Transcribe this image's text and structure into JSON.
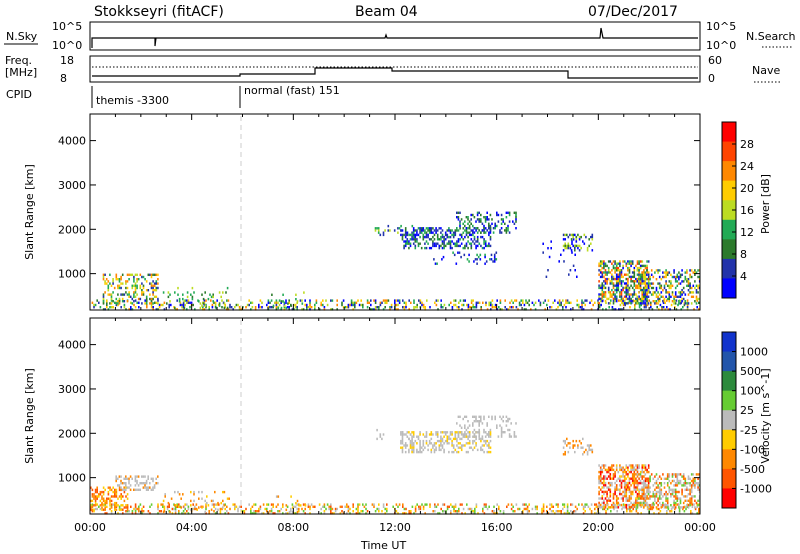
{
  "header": {
    "station": "Stokkseyri (fitACF)",
    "beam": "Beam 04",
    "date": "07/Dec/2017"
  },
  "strips": {
    "nsky_label": "N.Sky",
    "nsky_ticks": [
      "10^5",
      "10^0"
    ],
    "nsearch_label": "N.Search",
    "nsearch_ticks": [
      "10^5",
      "10^0"
    ],
    "freq_label_line1": "Freq.",
    "freq_label_line2": "[MHz]",
    "freq_ticks": [
      "18",
      "8"
    ],
    "nave_label": "Nave",
    "nave_ticks": [
      "60",
      "0"
    ],
    "cpid_label": "CPID",
    "cpid_segments": [
      {
        "label": "themis -3300",
        "start_hour": 0.0
      },
      {
        "label": "normal (fast) 151",
        "start_hour": 6.0
      }
    ]
  },
  "chart_data": [
    {
      "type": "heatmap",
      "title": "Power",
      "ylabel": "Slant Range [km]",
      "colorbar_label": "Power [dB]",
      "xlim_hours": [
        0,
        24
      ],
      "ylim": [
        180,
        4600
      ],
      "y_ticks": [
        "1000",
        "2000",
        "3000",
        "4000"
      ],
      "colorbar_ticks": [
        "28",
        "24",
        "20",
        "16",
        "12",
        "8",
        "4"
      ],
      "colorscale": [
        "#0000ff",
        "#2233aa",
        "#2c7a2c",
        "#22aa55",
        "#bcdc22",
        "#ffcc00",
        "#ff8800",
        "#ff4400",
        "#ff0000"
      ],
      "regions": [
        {
          "t": [
            0.0,
            24.0
          ],
          "r": [
            180,
            420
          ],
          "density": 0.3,
          "levels": [
            0,
            1,
            2,
            3,
            4,
            5,
            6
          ]
        },
        {
          "t": [
            0.5,
            2.7
          ],
          "r": [
            300,
            1000
          ],
          "density": 0.35,
          "levels": [
            1,
            2,
            3,
            4,
            5,
            6
          ]
        },
        {
          "t": [
            2.8,
            5.5
          ],
          "r": [
            180,
            700
          ],
          "density": 0.12,
          "levels": [
            2,
            3,
            4
          ]
        },
        {
          "t": [
            7.0,
            8.5
          ],
          "r": [
            180,
            600
          ],
          "density": 0.1,
          "levels": [
            2,
            3,
            4
          ]
        },
        {
          "t": [
            11.2,
            12.8
          ],
          "r": [
            1850,
            2100
          ],
          "density": 0.15,
          "levels": [
            1,
            3,
            4
          ]
        },
        {
          "t": [
            12.2,
            15.8
          ],
          "r": [
            1550,
            2050
          ],
          "density": 0.45,
          "levels": [
            0,
            1,
            2,
            3
          ]
        },
        {
          "t": [
            14.4,
            16.8
          ],
          "r": [
            1900,
            2400
          ],
          "density": 0.3,
          "levels": [
            0,
            1,
            2,
            3
          ]
        },
        {
          "t": [
            13.5,
            16.0
          ],
          "r": [
            1200,
            1500
          ],
          "density": 0.12,
          "levels": [
            0,
            1,
            3
          ]
        },
        {
          "t": [
            17.8,
            19.2
          ],
          "r": [
            900,
            1800
          ],
          "density": 0.06,
          "levels": [
            0,
            1
          ]
        },
        {
          "t": [
            18.6,
            19.8
          ],
          "r": [
            1500,
            1900
          ],
          "density": 0.3,
          "levels": [
            0,
            1,
            2,
            4
          ]
        },
        {
          "t": [
            20.0,
            22.0
          ],
          "r": [
            300,
            1300
          ],
          "density": 0.55,
          "levels": [
            0,
            1,
            2,
            3,
            4,
            5,
            6,
            7
          ]
        },
        {
          "t": [
            21.5,
            24.0
          ],
          "r": [
            300,
            1100
          ],
          "density": 0.45,
          "levels": [
            0,
            1,
            2,
            3,
            4,
            5,
            6
          ]
        }
      ]
    },
    {
      "type": "heatmap",
      "title": "Velocity",
      "ylabel": "Slant Range [km]",
      "xlabel": "Time UT",
      "colorbar_label": "Velocity [m s^-1]",
      "xlim_hours": [
        0,
        24
      ],
      "ylim": [
        180,
        4600
      ],
      "y_ticks": [
        "1000",
        "2000",
        "3000",
        "4000"
      ],
      "x_ticks": [
        "00:00",
        "04:00",
        "08:00",
        "12:00",
        "16:00",
        "20:00",
        "00:00"
      ],
      "colorbar_ticks": [
        "1000",
        "500",
        "100",
        "25",
        "-25",
        "-100",
        "-500",
        "-1000"
      ],
      "colorscale": [
        "#ff0000",
        "#ff5500",
        "#ff8800",
        "#ffcc00",
        "#bbbbbb",
        "#66cc33",
        "#2c8a3c",
        "#2255aa",
        "#1133cc"
      ],
      "regions": [
        {
          "t": [
            0.0,
            24.0
          ],
          "r": [
            180,
            420
          ],
          "density": 0.3,
          "levels": [
            1,
            2,
            3,
            4,
            5
          ]
        },
        {
          "t": [
            0.0,
            1.5
          ],
          "r": [
            250,
            800
          ],
          "density": 0.4,
          "levels": [
            1,
            2,
            3
          ]
        },
        {
          "t": [
            1.0,
            2.7
          ],
          "r": [
            700,
            1050
          ],
          "density": 0.4,
          "levels": [
            4,
            4,
            4,
            2
          ]
        },
        {
          "t": [
            2.8,
            5.5
          ],
          "r": [
            180,
            700
          ],
          "density": 0.1,
          "levels": [
            2,
            3,
            4
          ]
        },
        {
          "t": [
            7.0,
            8.5
          ],
          "r": [
            180,
            600
          ],
          "density": 0.1,
          "levels": [
            2,
            3,
            4
          ]
        },
        {
          "t": [
            11.2,
            12.8
          ],
          "r": [
            1850,
            2100
          ],
          "density": 0.12,
          "levels": [
            4
          ]
        },
        {
          "t": [
            12.2,
            15.8
          ],
          "r": [
            1550,
            2050
          ],
          "density": 0.45,
          "levels": [
            4,
            4,
            4,
            3
          ]
        },
        {
          "t": [
            14.4,
            16.8
          ],
          "r": [
            1900,
            2400
          ],
          "density": 0.25,
          "levels": [
            4,
            4
          ]
        },
        {
          "t": [
            18.6,
            19.8
          ],
          "r": [
            1500,
            1900
          ],
          "density": 0.25,
          "levels": [
            2,
            4
          ]
        },
        {
          "t": [
            20.0,
            22.0
          ],
          "r": [
            300,
            1300
          ],
          "density": 0.55,
          "levels": [
            0,
            1,
            2,
            2,
            3,
            4,
            4
          ]
        },
        {
          "t": [
            21.5,
            24.0
          ],
          "r": [
            300,
            1100
          ],
          "density": 0.45,
          "levels": [
            1,
            2,
            4,
            4,
            5
          ]
        }
      ]
    }
  ]
}
